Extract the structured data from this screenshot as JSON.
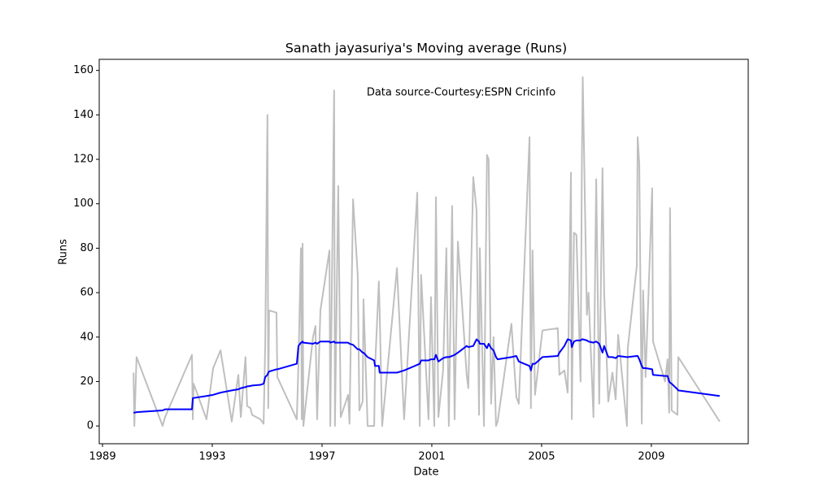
{
  "chart_data": {
    "type": "line",
    "title": "Sanath jayasuriya's Moving average (Runs)",
    "annotation": "Data source-Courtesy:ESPN Cricinfo",
    "x_label": "Date",
    "y_label": "Runs",
    "x": [
      1990.13,
      1990.16,
      1990.24,
      1991.19,
      1991.28,
      1992.26,
      1992.29,
      1992.32,
      1992.79,
      1993.03,
      1993.3,
      1993.71,
      1993.95,
      1994.04,
      1994.21,
      1994.27,
      1994.39,
      1994.45,
      1994.75,
      1994.87,
      1994.93,
      1995.01,
      1995.04,
      1995.07,
      1995.34,
      1995.37,
      1996.08,
      1996.14,
      1996.23,
      1996.26,
      1996.29,
      1996.32,
      1996.67,
      1996.76,
      1996.82,
      1996.94,
      1997.27,
      1997.3,
      1997.44,
      1997.47,
      1997.59,
      1997.68,
      1997.95,
      1998.0,
      1998.13,
      1998.3,
      1998.36,
      1998.48,
      1998.51,
      1998.66,
      1998.9,
      1998.93,
      1999.07,
      1999.1,
      1999.19,
      1999.73,
      1999.99,
      2000.47,
      2000.56,
      2000.61,
      2000.88,
      2000.97,
      2001.09,
      2001.15,
      2001.24,
      2001.41,
      2001.53,
      2001.62,
      2001.74,
      2001.83,
      2001.95,
      2002.27,
      2002.33,
      2002.51,
      2002.63,
      2002.72,
      2002.75,
      2002.9,
      2003.01,
      2003.07,
      2003.16,
      2003.25,
      2003.34,
      2003.4,
      2003.9,
      2004.08,
      2004.17,
      2004.56,
      2004.61,
      2004.67,
      2004.76,
      2005.03,
      2005.59,
      2005.65,
      2005.83,
      2005.95,
      2006.07,
      2006.1,
      2006.18,
      2006.27,
      2006.42,
      2006.47,
      2006.5,
      2006.65,
      2006.71,
      2006.89,
      2006.99,
      2007.1,
      2007.22,
      2007.28,
      2007.43,
      2007.58,
      2007.7,
      2007.79,
      2008.11,
      2008.14,
      2008.47,
      2008.5,
      2008.56,
      2008.65,
      2008.7,
      2008.79,
      2009.03,
      2009.06,
      2009.5,
      2009.59,
      2009.65,
      2009.68,
      2009.74,
      2009.95,
      2009.98,
      2011.49
    ],
    "series": [
      {
        "color": "#bfbfbf",
        "values": [
          24,
          0,
          31,
          0,
          4,
          32,
          3,
          19,
          3,
          26,
          34,
          2,
          23,
          4,
          31,
          9,
          8,
          5,
          3,
          1,
          37,
          140,
          8,
          52,
          51,
          22,
          3,
          28,
          80,
          3,
          82,
          0,
          40,
          45,
          3,
          52,
          79,
          0,
          151,
          0,
          108,
          4,
          14,
          1,
          102,
          68,
          7,
          11,
          57,
          0,
          0,
          26,
          65,
          51,
          0,
          71,
          3,
          105,
          0,
          68,
          3,
          58,
          0,
          103,
          4,
          25,
          80,
          0,
          99,
          3,
          83,
          23,
          17,
          112,
          97,
          5,
          80,
          0,
          122,
          120,
          10,
          40,
          0,
          2,
          46,
          13,
          10,
          130,
          8,
          79,
          14,
          43,
          44,
          23,
          25,
          15,
          114,
          3,
          87,
          86,
          20,
          122,
          157,
          50,
          60,
          4,
          111,
          10,
          116,
          60,
          11,
          24,
          12,
          41,
          0,
          35,
          72,
          130,
          118,
          1,
          61,
          22,
          107,
          38,
          20,
          30,
          6,
          98,
          7,
          5,
          31,
          2
        ]
      },
      {
        "color": "#0000ff",
        "values": [
          6,
          6,
          6.2,
          7,
          7.5,
          7.5,
          12.5,
          12.6,
          13.5,
          14,
          15,
          16,
          16.5,
          17,
          17.5,
          17.8,
          18,
          18.2,
          18.5,
          19,
          22,
          23,
          24,
          24.5,
          25.5,
          25.5,
          28,
          36,
          37.5,
          37.5,
          38,
          37.5,
          37,
          37.5,
          37,
          38,
          38,
          37.5,
          38,
          37.5,
          37.5,
          37.5,
          37.5,
          37,
          36.5,
          34.5,
          34.5,
          33,
          33,
          31,
          29.5,
          27,
          27,
          24,
          24,
          24,
          25,
          27.5,
          28,
          29.5,
          29.5,
          30,
          30,
          32,
          29,
          30.5,
          31,
          31,
          31.5,
          32,
          33,
          36,
          35.5,
          36,
          39,
          38,
          37,
          37,
          35,
          37,
          35,
          34,
          31,
          30,
          31,
          31.5,
          29,
          27,
          25,
          28,
          28,
          31,
          31.5,
          33,
          36,
          39,
          38.5,
          35.5,
          38,
          38.5,
          38.5,
          39,
          39,
          38.5,
          38,
          37.5,
          38,
          37,
          33,
          36,
          31,
          31,
          30.5,
          31.5,
          31,
          31,
          31.5,
          31.5,
          30,
          27,
          26,
          26,
          25.5,
          23,
          22.5,
          22.5,
          20,
          19.5,
          19,
          16.5,
          16,
          13.5
        ]
      }
    ],
    "xlim": [
      1988.88,
      2012.53
    ],
    "xticks": [
      1989,
      1993,
      1997,
      2001,
      2005,
      2009
    ],
    "ylim": [
      -8,
      165
    ],
    "yticks": [
      0,
      20,
      40,
      60,
      80,
      100,
      120,
      140,
      160
    ]
  }
}
